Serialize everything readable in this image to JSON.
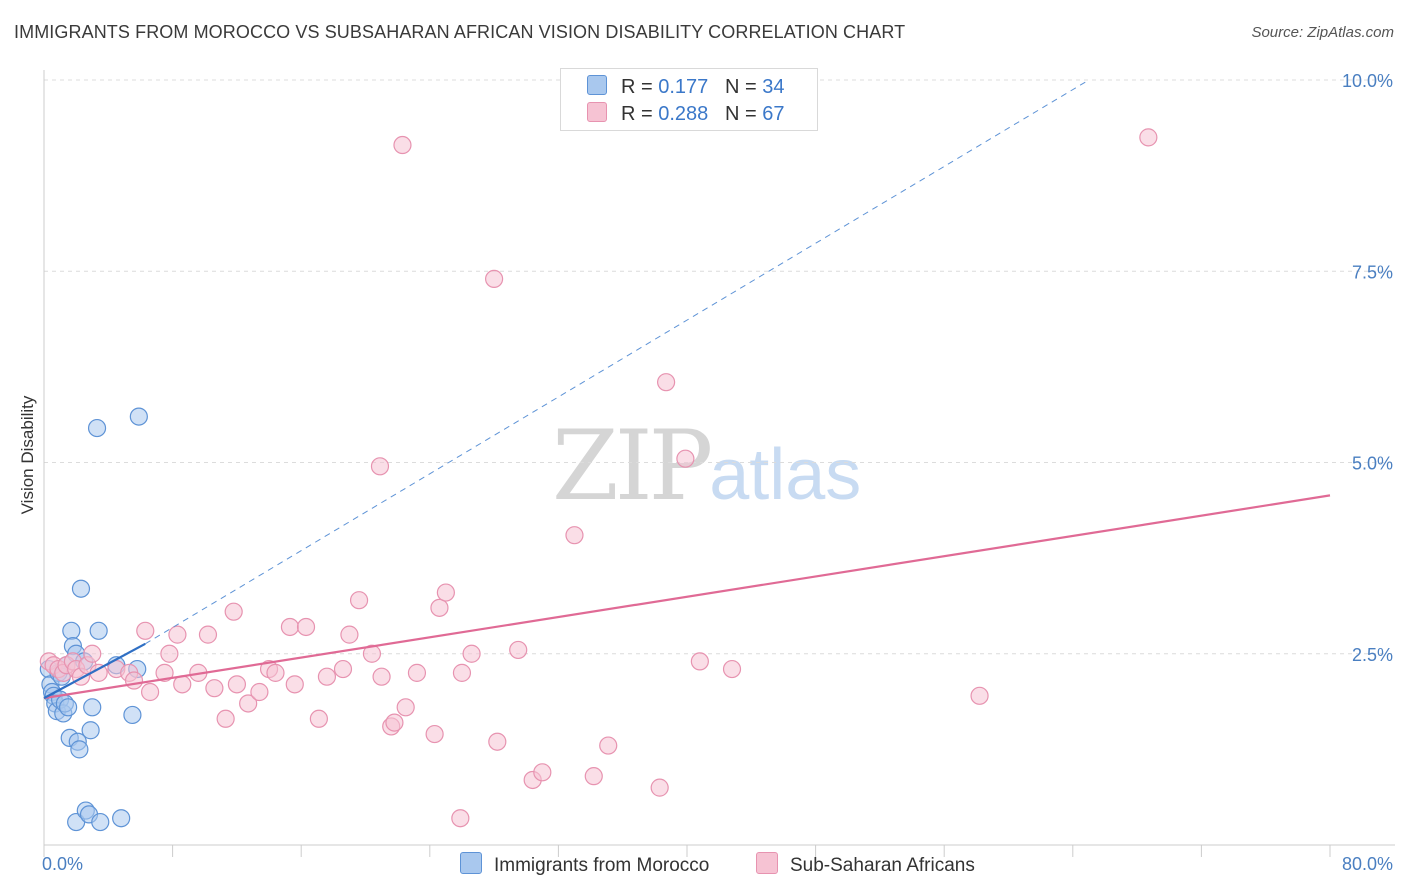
{
  "title": "IMMIGRANTS FROM MOROCCO VS SUBSAHARAN AFRICAN VISION DISABILITY CORRELATION CHART",
  "source": "Source: ZipAtlas.com",
  "watermark": {
    "zip": "ZIP",
    "atlas": "atlas"
  },
  "legend": {
    "rows": [
      {
        "r_label": "R = ",
        "r_value": "0.177",
        "n_label": "N = ",
        "n_value": "34"
      },
      {
        "r_label": "R = ",
        "r_value": "0.288",
        "n_label": "N = ",
        "n_value": "67"
      }
    ]
  },
  "colors": {
    "morocco_fill": "#a9c8ee",
    "morocco_stroke": "#5e93d6",
    "morocco_line": "#2f6fc4",
    "ssa_fill": "#f6c3d3",
    "ssa_stroke": "#e793b0",
    "ssa_line": "#e06a95",
    "grid": "#dcdcdc",
    "axis": "#cccccc",
    "tick_text": "#4a7fc1"
  },
  "chart_data": {
    "type": "scatter",
    "title": "IMMIGRANTS FROM MOROCCO VS SUBSAHARAN AFRICAN VISION DISABILITY CORRELATION CHART",
    "xlabel": "",
    "ylabel": "Vision Disability",
    "xlim": [
      0,
      80
    ],
    "ylim": [
      0,
      10.5
    ],
    "x_tick_labels": [
      "0.0%",
      "80.0%"
    ],
    "y_ticks": [
      2.5,
      5.0,
      7.5,
      10.0
    ],
    "y_tick_labels": [
      "2.5%",
      "5.0%",
      "7.5%",
      "10.0%"
    ],
    "grid": true,
    "legend_position": "top-center",
    "series": [
      {
        "name": "Immigrants from Morocco",
        "R": 0.177,
        "N": 34,
        "trend_solid": [
          [
            0,
            1.92
          ],
          [
            6.3,
            2.63
          ]
        ],
        "trend_dashed": [
          [
            6.3,
            2.63
          ],
          [
            65,
            10.0
          ]
        ],
        "points": [
          [
            0.3,
            2.3
          ],
          [
            0.4,
            2.1
          ],
          [
            0.5,
            2.0
          ],
          [
            0.6,
            1.95
          ],
          [
            0.7,
            1.85
          ],
          [
            0.8,
            1.75
          ],
          [
            0.9,
            2.25
          ],
          [
            1.0,
            1.9
          ],
          [
            1.1,
            2.2
          ],
          [
            1.2,
            1.72
          ],
          [
            1.3,
            1.85
          ],
          [
            1.4,
            2.35
          ],
          [
            1.5,
            1.8
          ],
          [
            1.6,
            1.4
          ],
          [
            1.7,
            2.8
          ],
          [
            1.8,
            2.6
          ],
          [
            2.0,
            2.5
          ],
          [
            2.0,
            0.3
          ],
          [
            2.1,
            1.35
          ],
          [
            2.2,
            1.25
          ],
          [
            2.3,
            3.35
          ],
          [
            2.5,
            2.4
          ],
          [
            2.6,
            0.45
          ],
          [
            2.8,
            0.4
          ],
          [
            2.9,
            1.5
          ],
          [
            3.0,
            1.8
          ],
          [
            3.3,
            5.45
          ],
          [
            3.4,
            2.8
          ],
          [
            3.5,
            0.3
          ],
          [
            4.5,
            2.35
          ],
          [
            4.8,
            0.35
          ],
          [
            5.5,
            1.7
          ],
          [
            5.8,
            2.3
          ],
          [
            5.9,
            5.6
          ]
        ]
      },
      {
        "name": "Sub-Saharan Africans",
        "R": 0.288,
        "N": 67,
        "trend_solid": [
          [
            0,
            1.92
          ],
          [
            80,
            4.57
          ]
        ],
        "points": [
          [
            0.3,
            2.4
          ],
          [
            0.6,
            2.35
          ],
          [
            0.9,
            2.3
          ],
          [
            1.2,
            2.25
          ],
          [
            1.4,
            2.35
          ],
          [
            1.8,
            2.4
          ],
          [
            2.0,
            2.3
          ],
          [
            2.3,
            2.2
          ],
          [
            2.7,
            2.35
          ],
          [
            3.0,
            2.5
          ],
          [
            3.4,
            2.25
          ],
          [
            4.5,
            2.3
          ],
          [
            5.3,
            2.25
          ],
          [
            5.6,
            2.15
          ],
          [
            6.3,
            2.8
          ],
          [
            6.6,
            2.0
          ],
          [
            7.5,
            2.25
          ],
          [
            7.8,
            2.5
          ],
          [
            8.3,
            2.75
          ],
          [
            8.6,
            2.1
          ],
          [
            9.6,
            2.25
          ],
          [
            10.2,
            2.75
          ],
          [
            10.6,
            2.05
          ],
          [
            11.3,
            1.65
          ],
          [
            11.8,
            3.05
          ],
          [
            12.0,
            2.1
          ],
          [
            12.7,
            1.85
          ],
          [
            13.4,
            2.0
          ],
          [
            14.0,
            2.3
          ],
          [
            14.4,
            2.25
          ],
          [
            15.3,
            2.85
          ],
          [
            15.6,
            2.1
          ],
          [
            16.3,
            2.85
          ],
          [
            17.1,
            1.65
          ],
          [
            17.6,
            2.2
          ],
          [
            18.6,
            2.3
          ],
          [
            19.0,
            2.75
          ],
          [
            19.6,
            3.2
          ],
          [
            20.4,
            2.5
          ],
          [
            21.0,
            2.2
          ],
          [
            21.6,
            1.55
          ],
          [
            21.8,
            1.6
          ],
          [
            22.5,
            1.8
          ],
          [
            23.2,
            2.25
          ],
          [
            24.3,
            1.45
          ],
          [
            24.6,
            3.1
          ],
          [
            25.0,
            3.3
          ],
          [
            25.9,
            0.35
          ],
          [
            26.0,
            2.25
          ],
          [
            26.6,
            2.5
          ],
          [
            28.2,
            1.35
          ],
          [
            29.5,
            2.55
          ],
          [
            30.4,
            0.85
          ],
          [
            31.0,
            0.95
          ],
          [
            33.0,
            4.05
          ],
          [
            35.1,
            1.3
          ],
          [
            38.3,
            0.75
          ],
          [
            40.8,
            2.4
          ],
          [
            42.8,
            2.3
          ],
          [
            58.2,
            1.95
          ],
          [
            20.9,
            4.95
          ],
          [
            22.3,
            9.15
          ],
          [
            28.0,
            7.4
          ],
          [
            38.7,
            6.05
          ],
          [
            39.9,
            5.05
          ],
          [
            68.7,
            9.25
          ],
          [
            34.2,
            0.9
          ]
        ]
      }
    ]
  },
  "bottom_legend": {
    "items": [
      {
        "label": "Immigrants from Morocco"
      },
      {
        "label": "Sub-Saharan Africans"
      }
    ]
  }
}
